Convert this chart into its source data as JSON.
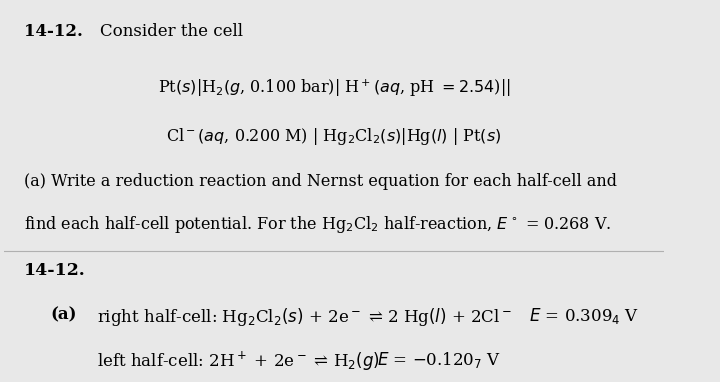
{
  "bg_color": "#e8e8e8",
  "fig_width": 7.2,
  "fig_height": 3.82,
  "problem_number": "14-12.",
  "consider_text": "Consider the cell",
  "cell_line1": "Pt$(s)$|H$_2$$(g$, 0.100 bar)| H$^+$$(aq$, pH $= 2.54$)||",
  "cell_line2": "Cl$^-$$(aq$, 0.200 M) | Hg$_2$Cl$_2$$(s)$|Hg$(l)$ | Pt$(s)$",
  "part_a_q1": "(a) Write a reduction reaction and Nernst equation for each half-cell and",
  "part_a_q2": "find each half-cell potential. For the Hg$_2$Cl$_2$ half-reaction, $E^\\circ$ = 0.268 V.",
  "answer_number": "14-12.",
  "answer_a_label": "(a)",
  "answer_right": "right half-cell: Hg$_2$Cl$_2$$(s)$ + 2e$^-$ ⇌ 2 Hg$(l)$ + 2Cl$^-$",
  "answer_right_E": "$E$ = 0.309$_4$ V",
  "answer_left": "left half-cell: 2H$^+$ + 2e$^-$ ⇌ H$_2$$(g)$",
  "answer_left_E": "$E$ = −0.120$_7$ V"
}
